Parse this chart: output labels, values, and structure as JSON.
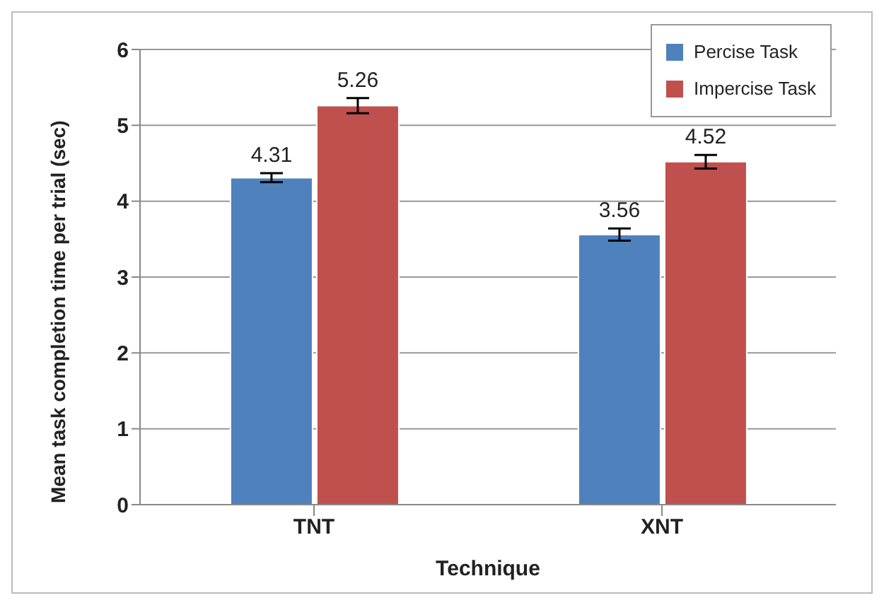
{
  "chart_data": {
    "type": "bar",
    "xlabel": "Technique",
    "ylabel": "Mean task completion time per trial (sec)",
    "categories": [
      "TNT",
      "XNT"
    ],
    "series": [
      {
        "name": "Percise Task",
        "color": "#4f81bd",
        "values": [
          4.31,
          3.56
        ],
        "errors": [
          0.06,
          0.08
        ]
      },
      {
        "name": "Impercise Task",
        "color": "#c0504d",
        "values": [
          5.26,
          4.52
        ],
        "errors": [
          0.1,
          0.09
        ]
      }
    ],
    "ylim": [
      0,
      6
    ],
    "yticks": [
      0,
      1,
      2,
      3,
      4,
      5,
      6
    ],
    "grid": "y",
    "legend": "top right",
    "data_labels": true
  }
}
